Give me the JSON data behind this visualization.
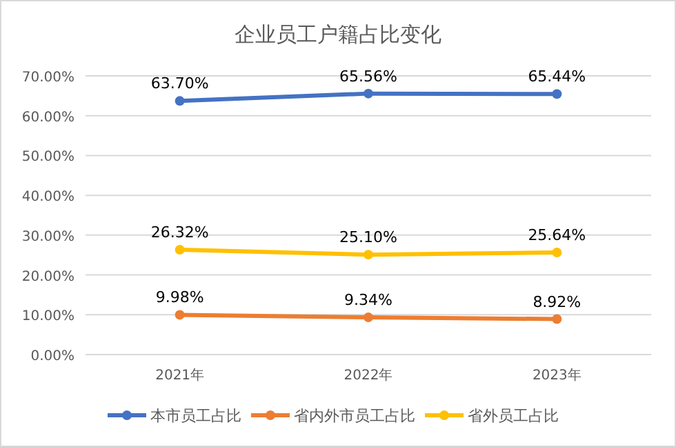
{
  "chart_data": {
    "type": "line",
    "title": "企业员工户籍占比变化",
    "categories": [
      "2021年",
      "2022年",
      "2023年"
    ],
    "series": [
      {
        "name": "本市员工占比",
        "color": "#4472c4",
        "values": [
          63.7,
          65.56,
          65.44
        ],
        "value_labels": [
          "63.70%",
          "65.56%",
          "65.44%"
        ]
      },
      {
        "name": "省内外市员工占比",
        "color": "#ed7d31",
        "values": [
          9.98,
          9.34,
          8.92
        ],
        "value_labels": [
          "9.98%",
          "9.34%",
          "8.92%"
        ]
      },
      {
        "name": "省外员工占比",
        "color": "#ffc000",
        "values": [
          26.32,
          25.1,
          25.64
        ],
        "value_labels": [
          "26.32%",
          "25.10%",
          "25.64%"
        ]
      }
    ],
    "ylim": [
      0,
      70
    ],
    "yticks": [
      {
        "value": 0,
        "label": "0.00%"
      },
      {
        "value": 10,
        "label": "10.00%"
      },
      {
        "value": 20,
        "label": "20.00%"
      },
      {
        "value": 30,
        "label": "30.00%"
      },
      {
        "value": 40,
        "label": "40.00%"
      },
      {
        "value": 50,
        "label": "50.00%"
      },
      {
        "value": 60,
        "label": "60.00%"
      },
      {
        "value": 70,
        "label": "70.00%"
      }
    ],
    "grid": "y",
    "legend": "bottom",
    "marker": "circle",
    "line_style": "solid"
  }
}
